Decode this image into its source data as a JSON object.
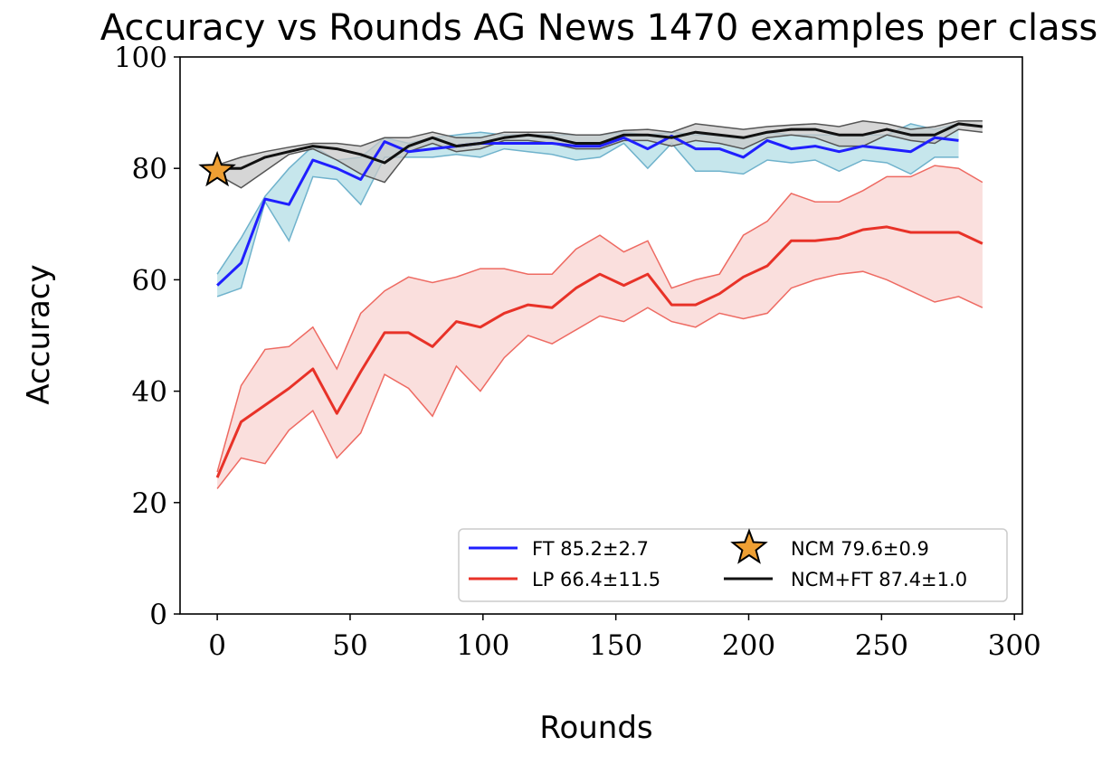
{
  "chart_data": {
    "type": "line",
    "title": "Accuracy vs Rounds AG News 1470 examples per class",
    "xlabel": "Rounds",
    "ylabel": "Accuracy",
    "xlim": [
      -14,
      303
    ],
    "ylim": [
      0,
      100
    ],
    "xticks": [
      0,
      50,
      100,
      150,
      200,
      250,
      300
    ],
    "yticks": [
      0,
      20,
      40,
      60,
      80,
      100
    ],
    "grid": false,
    "legend_position": "lower-right",
    "series": [
      {
        "name": "FT 85.2±2.7",
        "color": "#1f1fff",
        "band_fill": "#b3dde6",
        "band_edge": "#6fb2cc",
        "x": [
          0,
          9,
          18,
          27,
          36,
          45,
          54,
          63,
          72,
          81,
          90,
          99,
          108,
          117,
          126,
          135,
          144,
          153,
          162,
          171,
          180,
          189,
          198,
          207,
          216,
          225,
          234,
          243,
          252,
          261,
          270,
          279
        ],
        "y": [
          59.0,
          63.0,
          74.5,
          73.5,
          81.5,
          80.0,
          78.0,
          84.8,
          83.0,
          83.5,
          84.0,
          84.5,
          84.5,
          84.5,
          84.5,
          84.0,
          84.0,
          85.5,
          83.5,
          85.8,
          83.5,
          83.5,
          82.0,
          85.0,
          83.5,
          84.0,
          83.0,
          84.0,
          83.5,
          83.0,
          85.5,
          85.0
        ],
        "lower": [
          57.0,
          58.5,
          74.0,
          67.0,
          78.5,
          78.0,
          73.5,
          82.0,
          82.0,
          82.0,
          82.5,
          82.0,
          83.5,
          83.0,
          82.5,
          81.5,
          82.0,
          84.5,
          80.0,
          84.5,
          79.5,
          79.5,
          79.0,
          81.5,
          81.0,
          81.5,
          79.5,
          81.5,
          81.0,
          79.0,
          82.0,
          82.0
        ],
        "upper": [
          61.0,
          67.5,
          75.0,
          80.0,
          84.0,
          81.5,
          82.0,
          85.5,
          84.5,
          85.5,
          86.0,
          86.5,
          86.0,
          86.0,
          86.0,
          86.0,
          86.0,
          86.5,
          86.0,
          86.5,
          86.0,
          86.0,
          85.5,
          86.5,
          86.0,
          86.0,
          86.0,
          86.0,
          86.0,
          88.0,
          87.0,
          88.0
        ]
      },
      {
        "name": "LP 66.4±11.5",
        "color": "#e83228",
        "band_fill": "#f8d4d2",
        "band_edge": "#ee6a62",
        "x": [
          0,
          9,
          18,
          27,
          36,
          45,
          54,
          63,
          72,
          81,
          90,
          99,
          108,
          117,
          126,
          135,
          144,
          153,
          162,
          171,
          180,
          189,
          198,
          207,
          216,
          225,
          234,
          243,
          252,
          261,
          270,
          279,
          288
        ],
        "y": [
          24.5,
          34.5,
          37.5,
          40.5,
          44.0,
          36.0,
          43.5,
          50.5,
          50.5,
          48.0,
          52.5,
          51.5,
          54.0,
          55.5,
          55.0,
          58.5,
          61.0,
          59.0,
          61.0,
          55.5,
          55.5,
          57.5,
          60.5,
          62.5,
          67.0,
          67.0,
          67.5,
          69.0,
          69.5,
          68.5,
          68.5,
          68.5,
          66.5
        ],
        "lower": [
          22.5,
          28.0,
          27.0,
          33.0,
          36.5,
          28.0,
          32.5,
          43.0,
          40.5,
          35.5,
          44.5,
          40.0,
          46.0,
          50.0,
          48.5,
          51.0,
          53.5,
          52.5,
          55.0,
          52.5,
          51.5,
          54.0,
          53.0,
          54.0,
          58.5,
          60.0,
          61.0,
          61.5,
          60.0,
          58.0,
          56.0,
          57.0,
          55.0
        ],
        "upper": [
          25.5,
          41.0,
          47.5,
          48.0,
          51.5,
          44.0,
          54.0,
          58.0,
          60.5,
          59.5,
          60.5,
          62.0,
          62.0,
          61.0,
          61.0,
          65.5,
          68.0,
          65.0,
          67.0,
          58.5,
          60.0,
          61.0,
          68.0,
          70.5,
          75.5,
          74.0,
          74.0,
          76.0,
          78.5,
          78.5,
          80.5,
          80.0,
          77.5
        ]
      },
      {
        "name": "NCM 79.6±0.9",
        "marker": "star",
        "color": "#ee9f33",
        "edge": "#000000",
        "x": [
          0
        ],
        "y": [
          79.6
        ]
      },
      {
        "name": "NCM+FT 87.4±1.0",
        "color": "#111111",
        "band_fill": "#c8c8c8",
        "band_edge": "#555555",
        "x": [
          -4,
          9,
          18,
          27,
          36,
          45,
          54,
          63,
          72,
          81,
          90,
          99,
          108,
          117,
          126,
          135,
          144,
          153,
          162,
          171,
          180,
          189,
          198,
          207,
          216,
          225,
          234,
          243,
          252,
          261,
          270,
          279,
          288
        ],
        "y": [
          80.0,
          80.0,
          82.0,
          83.0,
          84.0,
          83.5,
          82.5,
          81.0,
          84.0,
          85.5,
          84.0,
          84.5,
          85.5,
          86.0,
          85.5,
          84.5,
          84.5,
          86.0,
          86.0,
          85.5,
          86.5,
          86.0,
          85.5,
          86.5,
          87.0,
          87.0,
          86.0,
          86.0,
          87.0,
          86.0,
          86.0,
          88.0,
          87.5
        ],
        "lower": [
          80.0,
          76.5,
          79.5,
          82.5,
          83.5,
          81.5,
          79.0,
          77.5,
          83.0,
          84.5,
          83.0,
          83.5,
          85.0,
          85.0,
          84.5,
          83.5,
          83.5,
          85.0,
          85.0,
          84.0,
          85.0,
          84.5,
          83.5,
          85.5,
          86.0,
          85.5,
          84.0,
          84.0,
          86.0,
          85.0,
          84.5,
          87.0,
          86.5
        ],
        "upper": [
          80.0,
          82.0,
          83.0,
          83.8,
          84.5,
          84.5,
          84.0,
          85.5,
          85.5,
          86.5,
          85.5,
          85.5,
          86.5,
          86.5,
          86.5,
          86.0,
          86.0,
          86.8,
          87.0,
          86.5,
          88.0,
          87.5,
          87.0,
          87.5,
          87.8,
          88.0,
          87.5,
          88.5,
          88.0,
          87.0,
          87.5,
          88.5,
          88.5
        ]
      }
    ]
  }
}
